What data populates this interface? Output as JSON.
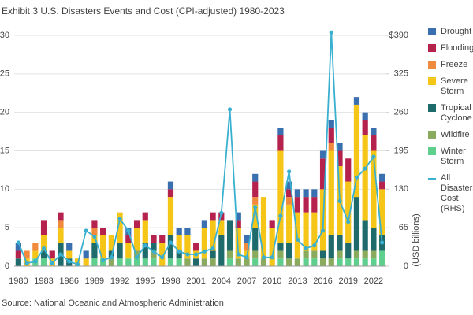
{
  "chart_data": {
    "type": "bar",
    "stacked": true,
    "title": "Exhibit 3 U.S. Disasters Events and Cost (CPI-adjusted) 1980-2023",
    "source": "Source: National Oceanic and Atmospheric Administration",
    "y2label": "(USD billions)",
    "categories": [
      "1980",
      null,
      null,
      "1983",
      null,
      null,
      "1986",
      null,
      null,
      "1989",
      null,
      null,
      "1992",
      null,
      null,
      "1995",
      null,
      null,
      "1998",
      null,
      null,
      "2001",
      null,
      null,
      "2004",
      null,
      null,
      "2007",
      null,
      null,
      "2010",
      null,
      null,
      "2013",
      null,
      null,
      "2016",
      null,
      null,
      "2019",
      null,
      null,
      "2022",
      null
    ],
    "ylim": [
      0,
      30
    ],
    "yticks": [
      0,
      5,
      10,
      15,
      20,
      25,
      30
    ],
    "y2lim": [
      0,
      390
    ],
    "y2ticks": [
      0,
      65,
      130,
      195,
      260,
      325,
      {
        "value": 390,
        "label": "$390"
      }
    ],
    "series": [
      {
        "name": "Drought",
        "color": "#3a6fb0",
        "values": [
          1,
          0,
          0,
          0,
          0,
          0,
          1,
          0,
          1,
          0,
          0,
          0,
          0,
          1,
          0,
          0,
          0,
          0,
          1,
          1,
          1,
          0,
          1,
          0,
          0,
          0,
          1,
          1,
          1,
          0,
          0,
          1,
          1,
          1,
          1,
          1,
          1,
          1,
          1,
          0,
          1,
          1,
          1,
          1
        ]
      },
      {
        "name": "Flooding",
        "color": "#b5224e",
        "values": [
          1,
          0,
          0,
          2,
          1,
          1,
          0,
          0,
          0,
          1,
          1,
          0,
          0,
          1,
          1,
          1,
          1,
          1,
          1,
          0,
          0,
          1,
          0,
          1,
          1,
          0,
          1,
          0,
          2,
          0,
          1,
          2,
          1,
          2,
          2,
          2,
          4,
          2,
          2,
          3,
          0,
          2,
          2,
          1
        ]
      },
      {
        "name": "Freeze",
        "color": "#f08a3c",
        "values": [
          0,
          1,
          1,
          0,
          0,
          1,
          0,
          0,
          0,
          1,
          0,
          0,
          0,
          0,
          0,
          0,
          0,
          0,
          0,
          0,
          0,
          0,
          0,
          0,
          0,
          0,
          0,
          1,
          1,
          0,
          0,
          0,
          1,
          0,
          0,
          0,
          0,
          1,
          0,
          0,
          0,
          0,
          0,
          0
        ]
      },
      {
        "name": "Severe Storm",
        "color": "#f5c518",
        "values": [
          0,
          1,
          1,
          2,
          1,
          2,
          1,
          1,
          1,
          1,
          3,
          2,
          4,
          2,
          3,
          3,
          0,
          3,
          5,
          2,
          3,
          1,
          4,
          4,
          2,
          0,
          4,
          1,
          3,
          8,
          5,
          12,
          5,
          6,
          5,
          5,
          8,
          11,
          9,
          8,
          12,
          11,
          10,
          6
        ]
      },
      {
        "name": "Tropical Cyclone",
        "color": "#1f6b6b",
        "values": [
          1,
          0,
          0,
          1,
          0,
          3,
          1,
          0,
          0,
          2,
          0,
          1,
          2,
          0,
          0,
          2,
          1,
          0,
          3,
          1,
          0,
          1,
          0,
          1,
          4,
          4,
          0,
          0,
          3,
          0,
          0,
          1,
          2,
          0,
          0,
          0,
          1,
          3,
          2,
          2,
          7,
          4,
          3,
          2
        ]
      },
      {
        "name": "Wildfire",
        "color": "#8aab5e",
        "values": [
          0,
          0,
          0,
          0,
          0,
          0,
          0,
          0,
          0,
          0,
          0,
          1,
          0,
          0,
          1,
          0,
          1,
          0,
          0,
          0,
          1,
          0,
          1,
          1,
          0,
          1,
          1,
          1,
          1,
          1,
          0,
          1,
          1,
          1,
          1,
          1,
          1,
          1,
          1,
          0,
          1,
          1,
          1,
          0
        ]
      },
      {
        "name": "Winter Storm",
        "color": "#5fcf8e",
        "values": [
          0,
          0,
          1,
          1,
          0,
          0,
          0,
          0,
          0,
          1,
          1,
          0,
          1,
          1,
          1,
          1,
          1,
          0,
          1,
          1,
          0,
          0,
          0,
          0,
          0,
          1,
          0,
          0,
          1,
          0,
          0,
          1,
          0,
          0,
          1,
          1,
          0,
          0,
          1,
          1,
          1,
          1,
          1,
          2
        ]
      },
      {
        "name": "All Disasters Cost (RHS)",
        "color": "#3ab0d0",
        "type": "line",
        "axis": "y2",
        "values": [
          40,
          5,
          8,
          30,
          5,
          20,
          8,
          3,
          60,
          50,
          10,
          15,
          80,
          60,
          15,
          35,
          25,
          15,
          40,
          25,
          20,
          20,
          25,
          30,
          90,
          265,
          20,
          15,
          100,
          15,
          15,
          85,
          160,
          45,
          30,
          35,
          60,
          395,
          110,
          75,
          150,
          165,
          185,
          40
        ]
      }
    ]
  }
}
